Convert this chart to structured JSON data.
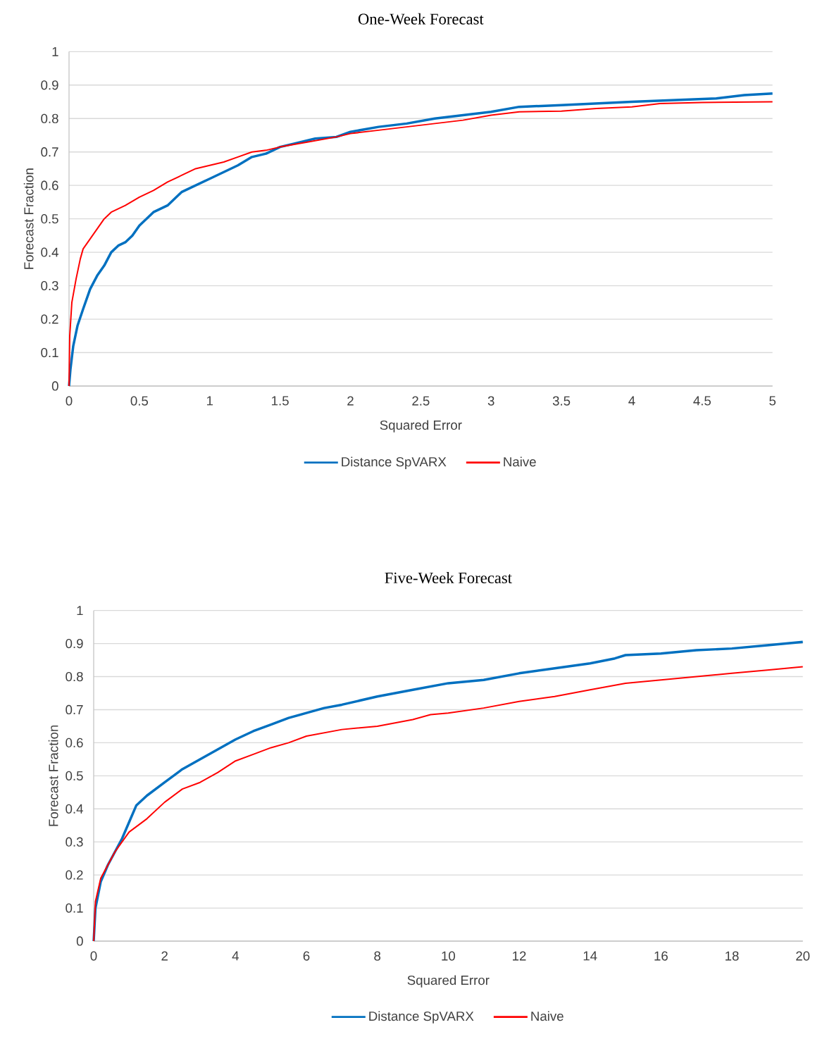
{
  "chart_data": [
    {
      "type": "line",
      "title": "One-Week Forecast",
      "xlabel": "Squared Error",
      "ylabel": "Forecast Fraction",
      "xlim": [
        0,
        5
      ],
      "ylim": [
        0,
        1
      ],
      "xticks": [
        0,
        0.5,
        1,
        1.5,
        2,
        2.5,
        3,
        3.5,
        4,
        4.5,
        5
      ],
      "yticks": [
        0,
        0.1,
        0.2,
        0.3,
        0.4,
        0.5,
        0.6,
        0.7,
        0.8,
        0.9,
        1
      ],
      "grid": "y",
      "legend": "bottom",
      "marker": "none",
      "line_style": "solid",
      "series": [
        {
          "name": "Distance SpVARX",
          "color": "#0070c0",
          "x": [
            0,
            0.01,
            0.03,
            0.06,
            0.1,
            0.15,
            0.2,
            0.25,
            0.3,
            0.35,
            0.4,
            0.45,
            0.5,
            0.6,
            0.7,
            0.8,
            0.9,
            1.0,
            1.1,
            1.2,
            1.3,
            1.4,
            1.5,
            1.6,
            1.75,
            1.9,
            2.0,
            2.2,
            2.4,
            2.6,
            2.8,
            3.0,
            3.2,
            3.5,
            3.75,
            4.0,
            4.3,
            4.6,
            4.8,
            5.0
          ],
          "values": [
            0,
            0.05,
            0.12,
            0.18,
            0.23,
            0.29,
            0.33,
            0.36,
            0.4,
            0.42,
            0.43,
            0.45,
            0.48,
            0.52,
            0.54,
            0.58,
            0.6,
            0.62,
            0.64,
            0.66,
            0.685,
            0.695,
            0.715,
            0.725,
            0.74,
            0.745,
            0.76,
            0.775,
            0.785,
            0.8,
            0.81,
            0.82,
            0.835,
            0.84,
            0.845,
            0.85,
            0.855,
            0.86,
            0.87,
            0.875
          ]
        },
        {
          "name": "Naive",
          "color": "#ff0000",
          "x": [
            0,
            0.005,
            0.02,
            0.05,
            0.08,
            0.1,
            0.15,
            0.2,
            0.25,
            0.3,
            0.4,
            0.5,
            0.6,
            0.7,
            0.8,
            0.9,
            1.0,
            1.1,
            1.2,
            1.3,
            1.4,
            1.5,
            1.7,
            1.9,
            2.0,
            2.2,
            2.5,
            2.8,
            3.0,
            3.2,
            3.5,
            3.75,
            4.0,
            4.2,
            4.5,
            5.0
          ],
          "values": [
            0,
            0.15,
            0.25,
            0.32,
            0.38,
            0.41,
            0.44,
            0.47,
            0.5,
            0.52,
            0.54,
            0.565,
            0.585,
            0.61,
            0.63,
            0.65,
            0.66,
            0.67,
            0.685,
            0.7,
            0.705,
            0.715,
            0.73,
            0.745,
            0.755,
            0.765,
            0.78,
            0.795,
            0.81,
            0.82,
            0.822,
            0.83,
            0.835,
            0.845,
            0.848,
            0.85
          ]
        }
      ]
    },
    {
      "type": "line",
      "title": "Five-Week Forecast",
      "xlabel": "Squared Error",
      "ylabel": "Forecast Fraction",
      "xlim": [
        0,
        20
      ],
      "ylim": [
        0,
        1
      ],
      "xticks": [
        0,
        2,
        4,
        6,
        8,
        10,
        12,
        14,
        16,
        18,
        20
      ],
      "yticks": [
        0,
        0.1,
        0.2,
        0.3,
        0.4,
        0.5,
        0.6,
        0.7,
        0.8,
        0.9,
        1
      ],
      "grid": "y",
      "legend": "bottom",
      "marker": "none",
      "line_style": "solid",
      "series": [
        {
          "name": "Distance SpVARX",
          "color": "#0070c0",
          "x": [
            0,
            0.05,
            0.2,
            0.4,
            0.6,
            0.8,
            1.0,
            1.2,
            1.5,
            2,
            2.5,
            3,
            3.5,
            4,
            4.5,
            5,
            5.5,
            6,
            6.5,
            7,
            8,
            9,
            10,
            11,
            12,
            13,
            14,
            14.7,
            15,
            16,
            17,
            18,
            19,
            20
          ],
          "values": [
            0,
            0.1,
            0.18,
            0.23,
            0.27,
            0.31,
            0.36,
            0.41,
            0.44,
            0.48,
            0.52,
            0.55,
            0.58,
            0.61,
            0.635,
            0.655,
            0.675,
            0.69,
            0.705,
            0.715,
            0.74,
            0.76,
            0.78,
            0.79,
            0.81,
            0.825,
            0.84,
            0.855,
            0.865,
            0.87,
            0.88,
            0.885,
            0.895,
            0.905
          ]
        },
        {
          "name": "Naive",
          "color": "#ff0000",
          "x": [
            0,
            0.05,
            0.2,
            0.4,
            0.6,
            0.8,
            1.0,
            1.5,
            2,
            2.5,
            3,
            3.5,
            4,
            4.5,
            5,
            5.5,
            6,
            7,
            8,
            9,
            9.5,
            10,
            11,
            12,
            13,
            14,
            15,
            16,
            17,
            18,
            19,
            20
          ],
          "values": [
            0,
            0.12,
            0.19,
            0.23,
            0.27,
            0.3,
            0.33,
            0.37,
            0.42,
            0.46,
            0.48,
            0.51,
            0.545,
            0.565,
            0.585,
            0.6,
            0.62,
            0.64,
            0.65,
            0.67,
            0.685,
            0.69,
            0.705,
            0.725,
            0.74,
            0.76,
            0.78,
            0.79,
            0.8,
            0.81,
            0.82,
            0.83
          ]
        }
      ]
    }
  ]
}
